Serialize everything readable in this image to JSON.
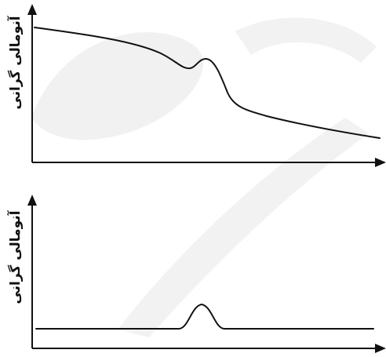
{
  "figure": {
    "top_panel": {
      "ylabel": "آنومالی گرانی"
    },
    "bottom_panel": {
      "ylabel": "آنومالی گرانی"
    }
  },
  "colors": {
    "ink": "#111111",
    "watermark": "#e8e8e8"
  }
}
